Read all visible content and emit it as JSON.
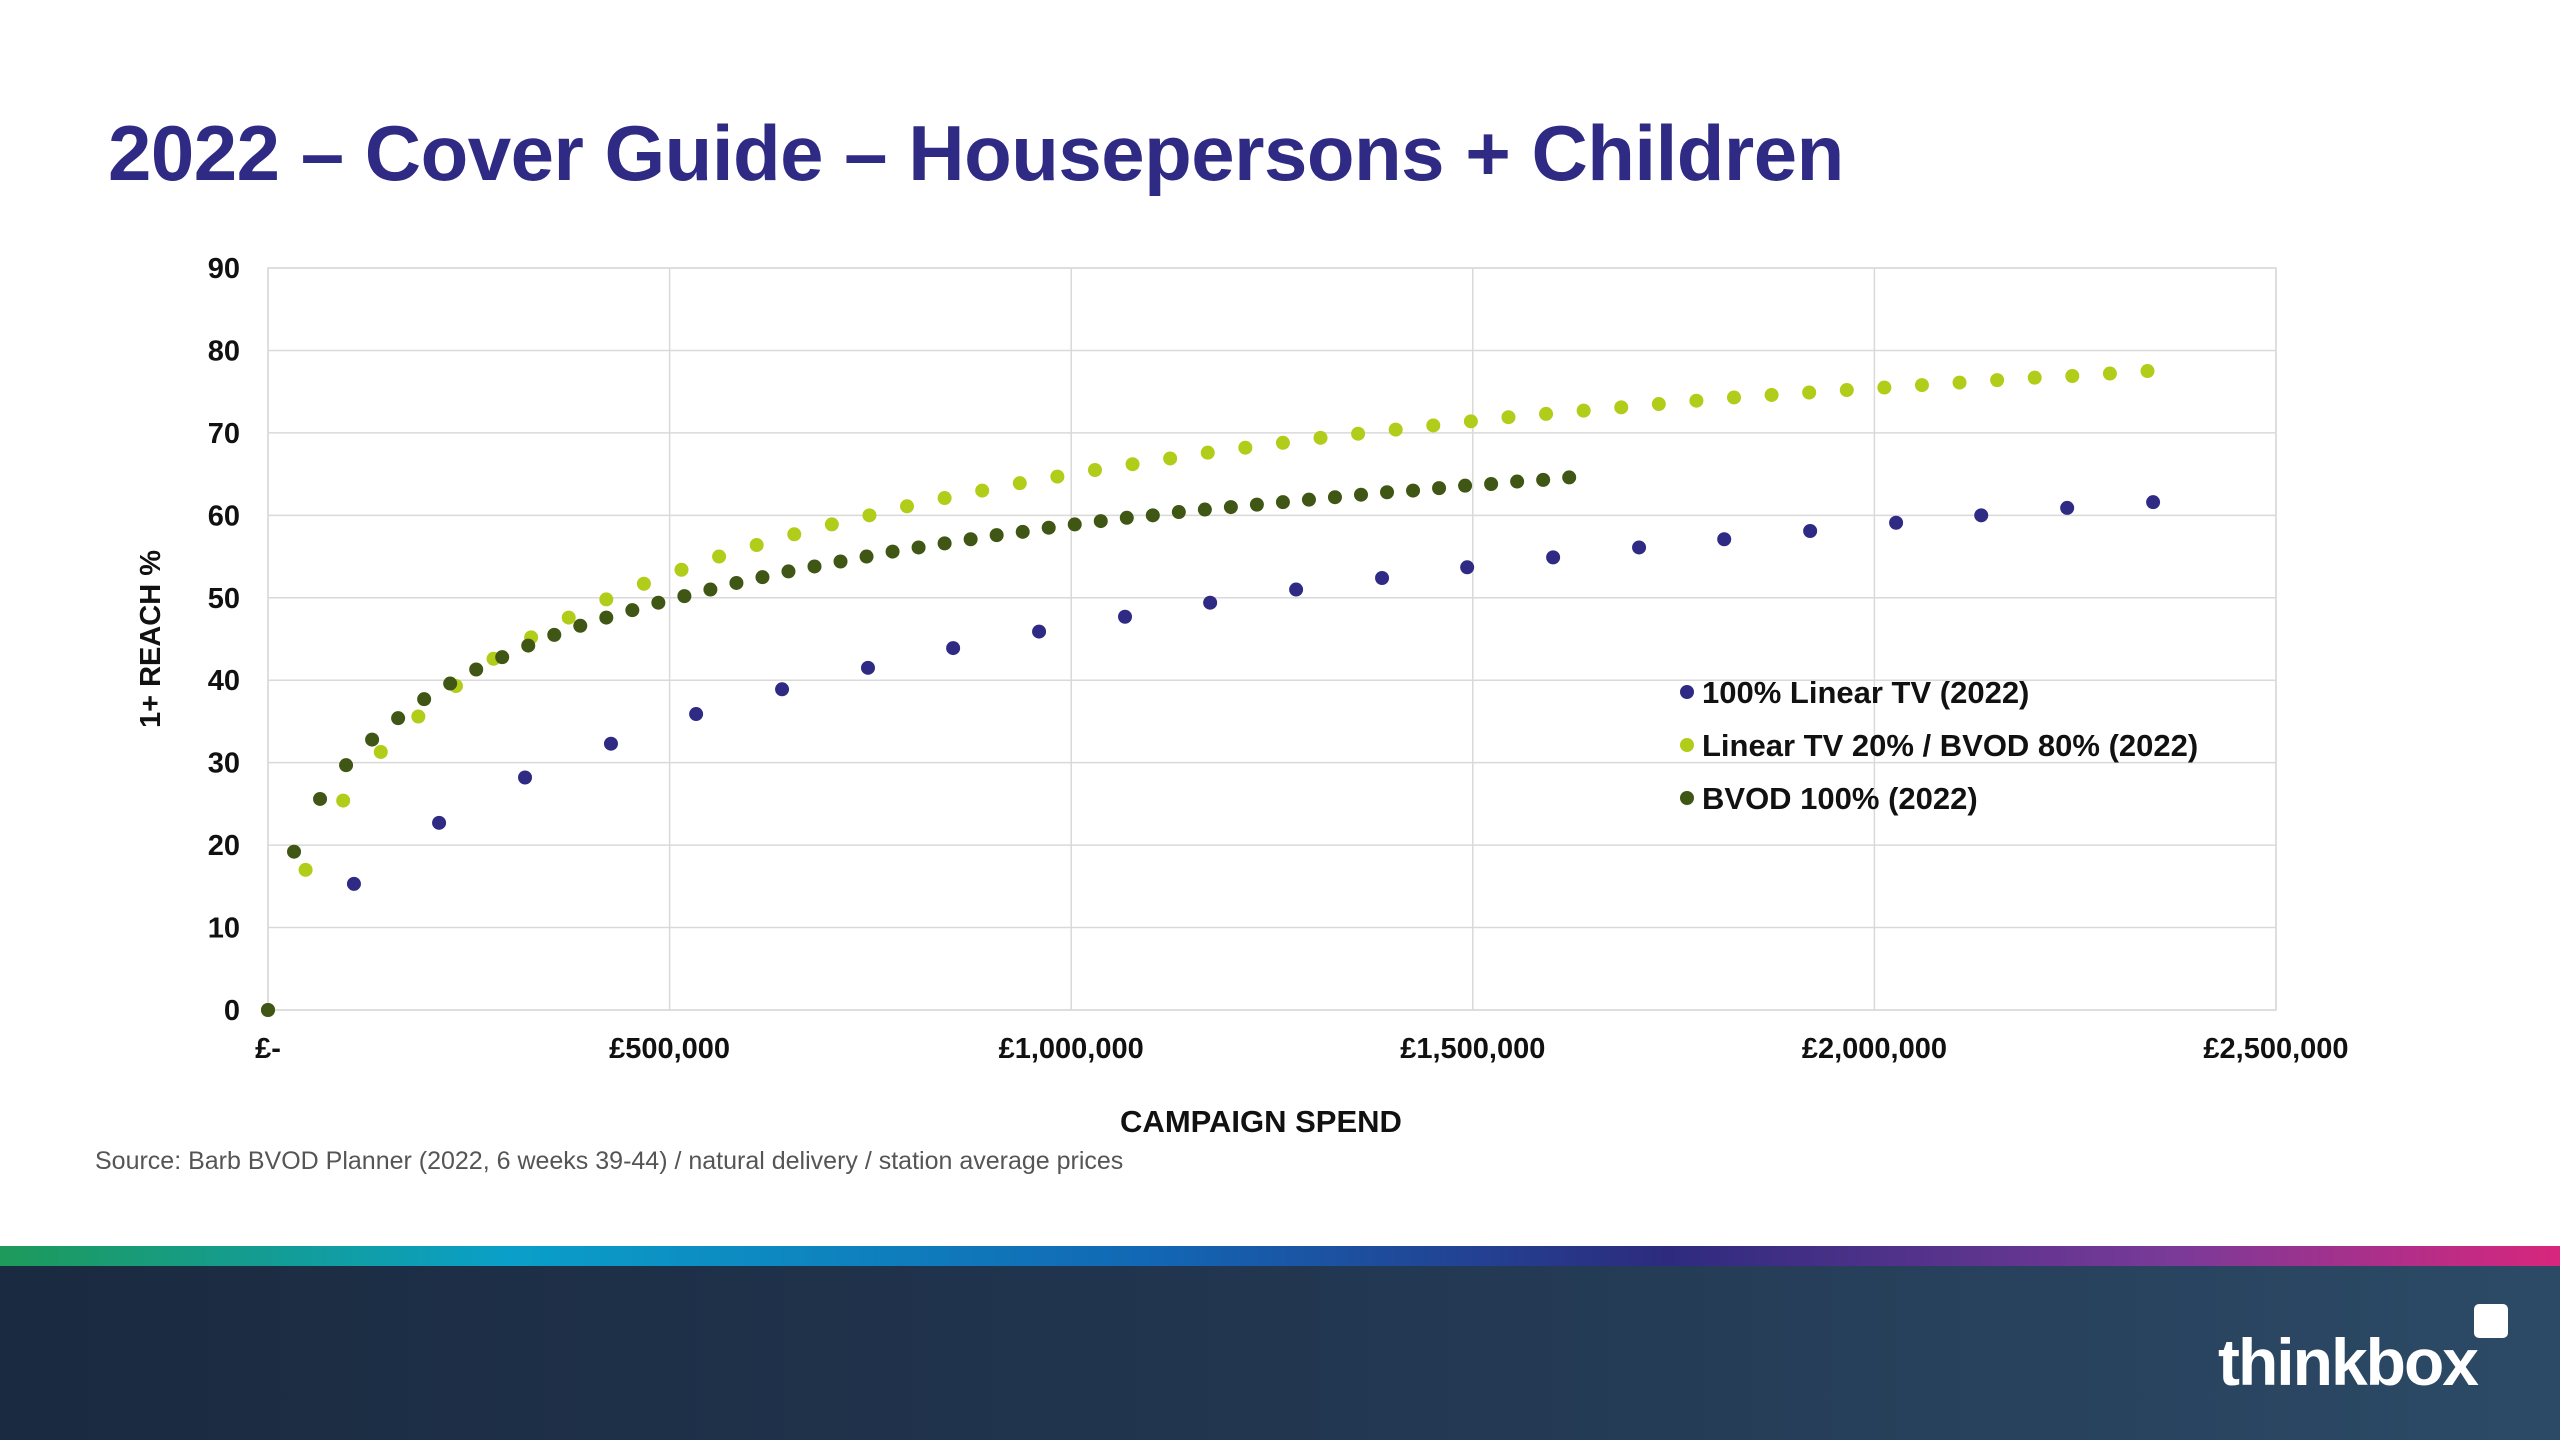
{
  "title": "2022 – Cover Guide – Housepersons + Children",
  "source": "Source: Barb BVOD Planner (2022, 6 weeks 39-44) / natural delivery / station average prices",
  "logo": {
    "text": "thinkbox",
    "icon": "square-dot-icon"
  },
  "chart_data": {
    "type": "scatter",
    "xlabel": "CAMPAIGN SPEND",
    "ylabel": "1+ REACH %",
    "xlim": [
      0,
      2500000
    ],
    "ylim": [
      0,
      90
    ],
    "xticks": [
      0,
      500000,
      1000000,
      1500000,
      2000000,
      2500000
    ],
    "xtick_labels": [
      "£-",
      "£500,000",
      "£1,000,000",
      "£1,500,000",
      "£2,000,000",
      "£2,500,000"
    ],
    "yticks": [
      0,
      10,
      20,
      30,
      40,
      50,
      60,
      70,
      80,
      90
    ],
    "ytick_labels": [
      "0",
      "10",
      "20",
      "30",
      "40",
      "50",
      "60",
      "70",
      "80",
      "90"
    ],
    "grid": true,
    "legend_position": "right-middle",
    "series": [
      {
        "name": "100% Linear TV (2022)",
        "color": "#2f2a84",
        "x": [
          0,
          107000,
          213000,
          320000,
          427000,
          533000,
          640000,
          747000,
          853000,
          960000,
          1067000,
          1173000,
          1280000,
          1387000,
          1493000,
          1600000,
          1707000,
          1813000,
          1920000,
          2027000,
          2133000,
          2240000,
          2347000
        ],
        "y": [
          0,
          15.3,
          22.7,
          28.2,
          32.3,
          35.9,
          38.9,
          41.5,
          43.9,
          45.9,
          47.7,
          49.4,
          51.0,
          52.4,
          53.7,
          54.9,
          56.1,
          57.1,
          58.1,
          59.1,
          60.0,
          60.9,
          61.6
        ]
      },
      {
        "name": "Linear TV 20% / BVOD 80% (2022)",
        "color": "#b2cc1a",
        "x": [
          0,
          46800,
          93600,
          140400,
          187200,
          234000,
          280800,
          327600,
          374400,
          421200,
          468000,
          514800,
          561600,
          608400,
          655200,
          702000,
          748800,
          795600,
          842400,
          889200,
          936000,
          982800,
          1029600,
          1076400,
          1123200,
          1170000,
          1216800,
          1263600,
          1310400,
          1357200,
          1404000,
          1450800,
          1497600,
          1544400,
          1591200,
          1638000,
          1684800,
          1731600,
          1778400,
          1825200,
          1872000,
          1918800,
          1965600,
          2012400,
          2059200,
          2106000,
          2152800,
          2199600,
          2246400,
          2293200,
          2340000
        ],
        "y": [
          0,
          17.0,
          25.4,
          31.3,
          35.6,
          39.3,
          42.6,
          45.2,
          47.6,
          49.8,
          51.7,
          53.4,
          55.0,
          56.4,
          57.7,
          58.9,
          60.0,
          61.1,
          62.1,
          63.0,
          63.9,
          64.7,
          65.5,
          66.2,
          66.9,
          67.6,
          68.2,
          68.8,
          69.4,
          69.9,
          70.4,
          70.9,
          71.4,
          71.9,
          72.3,
          72.7,
          73.1,
          73.5,
          73.9,
          74.3,
          74.6,
          74.9,
          75.2,
          75.5,
          75.8,
          76.1,
          76.4,
          76.7,
          76.9,
          77.2,
          77.5
        ]
      },
      {
        "name": "BVOD 100% (2022)",
        "color": "#3f5614",
        "x": [
          0,
          32400,
          64800,
          97200,
          129600,
          162000,
          194400,
          226800,
          259200,
          291600,
          324000,
          356400,
          388800,
          421200,
          453600,
          486000,
          518400,
          550800,
          583200,
          615600,
          648000,
          680400,
          712800,
          745200,
          777600,
          810000,
          842400,
          874800,
          907200,
          939600,
          972000,
          1004400,
          1036800,
          1069200,
          1101600,
          1134000,
          1166400,
          1198800,
          1231200,
          1263600,
          1296000,
          1328400,
          1360800,
          1393200,
          1425600,
          1458000,
          1490400,
          1522800,
          1555200,
          1587600,
          1620000
        ],
        "y": [
          0,
          19.2,
          25.6,
          29.7,
          32.8,
          35.4,
          37.7,
          39.6,
          41.3,
          42.8,
          44.2,
          45.5,
          46.6,
          47.6,
          48.5,
          49.4,
          50.2,
          51.0,
          51.8,
          52.5,
          53.2,
          53.8,
          54.4,
          55.0,
          55.6,
          56.1,
          56.6,
          57.1,
          57.6,
          58.0,
          58.5,
          58.9,
          59.3,
          59.7,
          60.0,
          60.4,
          60.7,
          61.0,
          61.3,
          61.6,
          61.9,
          62.2,
          62.5,
          62.8,
          63.0,
          63.3,
          63.6,
          63.8,
          64.1,
          64.3,
          64.6
        ]
      }
    ]
  }
}
